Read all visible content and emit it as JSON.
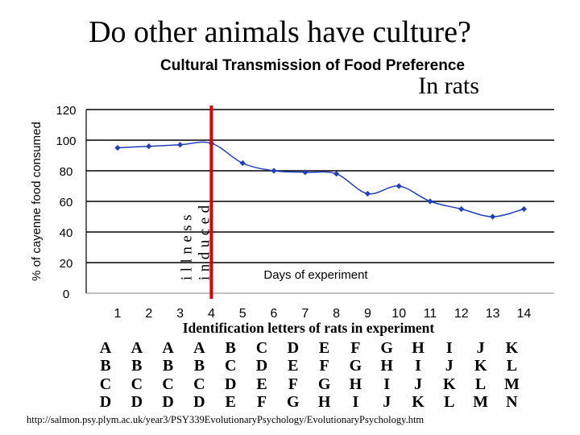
{
  "slide": {
    "title": "Do other animals have culture?",
    "subtitle": "In rats",
    "source_url": "http://salmon.psy.plym.ac.uk/year3/PSY339EvolutionaryPsychology/EvolutionaryPsychology.htm"
  },
  "colors": {
    "series": "#1f3fbf",
    "marker_line": "#e00000",
    "grid": "#000000",
    "axis_text": "#000000"
  },
  "chart_data": {
    "type": "line",
    "title": "Cultural Transmission of Food Preference",
    "xlabel": "Days of experiment",
    "ylabel": "% of cayenne food consumed",
    "x": [
      1,
      2,
      3,
      4,
      5,
      6,
      7,
      8,
      9,
      10,
      11,
      12,
      13,
      14
    ],
    "values": [
      95,
      96,
      97,
      98,
      85,
      80,
      79,
      78,
      65,
      70,
      60,
      55,
      50,
      55
    ],
    "ylim": [
      0,
      120
    ],
    "yticks": [
      0,
      20,
      40,
      60,
      80,
      100,
      120
    ],
    "marker_day": 4,
    "marker_label_line1": "illness",
    "marker_label_line2": "induced",
    "grid": true,
    "groups_title": "Identification letters of rats in experiment",
    "groups": [
      [
        "A",
        "B",
        "C",
        "D"
      ],
      [
        "A",
        "B",
        "C",
        "D"
      ],
      [
        "A",
        "B",
        "C",
        "D"
      ],
      [
        "A",
        "B",
        "C",
        "D"
      ],
      [
        "B",
        "C",
        "D",
        "E"
      ],
      [
        "C",
        "D",
        "E",
        "F"
      ],
      [
        "D",
        "E",
        "F",
        "G"
      ],
      [
        "E",
        "F",
        "G",
        "H"
      ],
      [
        "F",
        "G",
        "H",
        "I"
      ],
      [
        "G",
        "H",
        "I",
        "J"
      ],
      [
        "H",
        "I",
        "J",
        "K"
      ],
      [
        "I",
        "J",
        "K",
        "L"
      ],
      [
        "J",
        "K",
        "L",
        "M"
      ],
      [
        "K",
        "L",
        "M",
        "N"
      ]
    ]
  }
}
